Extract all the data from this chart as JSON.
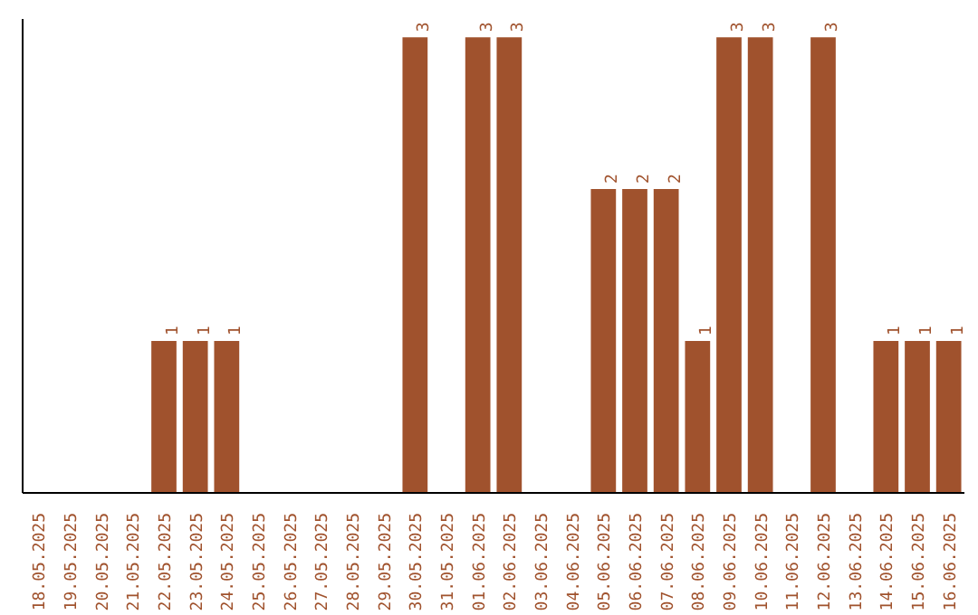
{
  "chart_data": {
    "type": "bar",
    "categories": [
      "18.05.2025",
      "19.05.2025",
      "20.05.2025",
      "21.05.2025",
      "22.05.2025",
      "23.05.2025",
      "24.05.2025",
      "25.05.2025",
      "26.05.2025",
      "27.05.2025",
      "28.05.2025",
      "29.05.2025",
      "30.05.2025",
      "31.05.2025",
      "01.06.2025",
      "02.06.2025",
      "03.06.2025",
      "04.06.2025",
      "05.06.2025",
      "06.06.2025",
      "07.06.2025",
      "08.06.2025",
      "09.06.2025",
      "10.06.2025",
      "11.06.2025",
      "12.06.2025",
      "13.06.2025",
      "14.06.2025",
      "15.06.2025",
      "16.06.2025"
    ],
    "values": [
      0,
      0,
      0,
      0,
      1,
      1,
      1,
      0,
      0,
      0,
      0,
      0,
      3,
      0,
      3,
      3,
      0,
      0,
      2,
      2,
      2,
      1,
      3,
      3,
      0,
      3,
      0,
      1,
      1,
      1
    ],
    "value_labels": [
      null,
      null,
      null,
      null,
      "1",
      "1",
      "1",
      null,
      null,
      null,
      null,
      null,
      "3",
      null,
      "3",
      "3",
      null,
      null,
      "2",
      "2",
      "2",
      "1",
      "3",
      "3",
      null,
      "3",
      null,
      "1",
      "1",
      "1"
    ],
    "color": "#a0522d",
    "grid": false,
    "tick_labels": "x"
  }
}
